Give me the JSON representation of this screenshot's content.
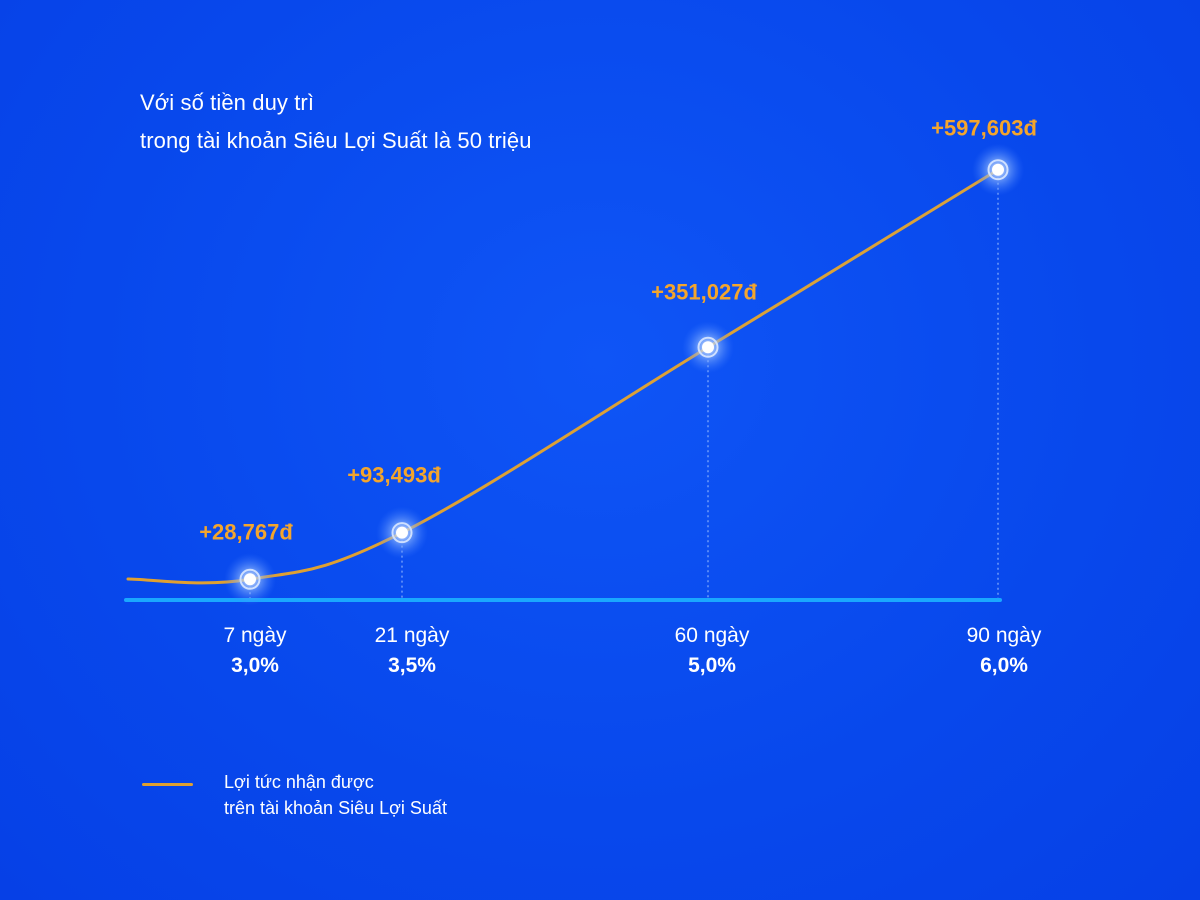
{
  "title_lines": [
    "Với số tiền duy trì",
    "trong tài khoản Siêu Lợi Suất là 50 triệu"
  ],
  "legend": {
    "lines": [
      "Lợi tức nhận được",
      "trên tài khoản Siêu Lợi Suất"
    ],
    "color": "#e0a030"
  },
  "chart_data": {
    "type": "line",
    "title": "Với số tiền duy trì trong tài khoản Siêu Lợi Suất là 50 triệu",
    "xlabel": "",
    "ylabel": "",
    "categories": [
      "7 ngày",
      "21 ngày",
      "60 ngày",
      "90 ngày"
    ],
    "x": [
      7,
      21,
      60,
      90
    ],
    "rates": [
      "3,0%",
      "3,5%",
      "5,0%",
      "6,0%"
    ],
    "values": [
      28767,
      93493,
      351027,
      597603
    ],
    "data_labels": [
      "+28,767đ",
      "+93,493đ",
      "+351,027đ",
      "+597,603đ"
    ],
    "series": [
      {
        "name": "Lợi tức nhận được trên tài khoản Siêu Lợi Suất",
        "values": [
          28767,
          93493,
          351027,
          597603
        ],
        "color": "#e0a030"
      }
    ],
    "label_color": "#f4a52c",
    "axis_color": "#1aa8ff",
    "grid": false,
    "legend_position": "bottom-left"
  }
}
